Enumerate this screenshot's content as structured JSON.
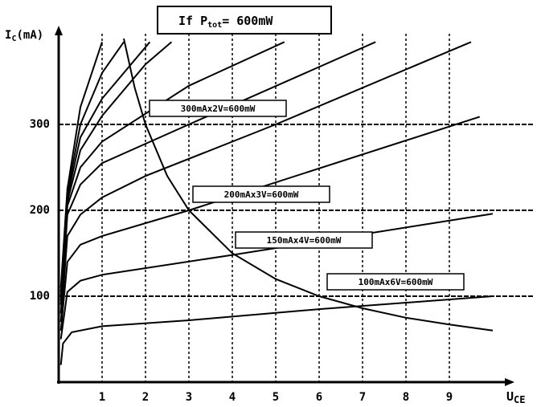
{
  "chart_data": {
    "type": "line",
    "title": {
      "main": "If P",
      "sub": "tot",
      "rest": "= 600mW"
    },
    "y_label": {
      "main": "I",
      "sub": "C",
      "rest": "(mA)"
    },
    "x_label": {
      "main": "U",
      "sub": "CE"
    },
    "xlim": [
      0,
      10
    ],
    "ylim": [
      0,
      400
    ],
    "xticks": [
      1,
      2,
      3,
      4,
      5,
      6,
      7,
      8,
      9
    ],
    "yticks": [
      100,
      200,
      300
    ],
    "grid": true,
    "series": [
      {
        "color": "#000000",
        "x": [
          0.05,
          0.1,
          0.3,
          1,
          3,
          6,
          10
        ],
        "values": [
          20,
          45,
          58,
          65,
          72,
          85,
          100
        ]
      },
      {
        "color": "#000000",
        "x": [
          0.05,
          0.2,
          0.5,
          1,
          4,
          10
        ],
        "values": [
          50,
          105,
          118,
          125,
          148,
          196
        ]
      },
      {
        "color": "#000000",
        "x": [
          0.05,
          0.2,
          0.5,
          1,
          3,
          9.7
        ],
        "values": [
          60,
          140,
          160,
          170,
          200,
          309
        ]
      },
      {
        "color": "#000000",
        "x": [
          0.05,
          0.2,
          0.5,
          1,
          2,
          5,
          9.5
        ],
        "values": [
          70,
          170,
          195,
          215,
          240,
          300,
          396
        ]
      },
      {
        "color": "#000000",
        "x": [
          0.05,
          0.2,
          0.5,
          1,
          3,
          7.3
        ],
        "values": [
          80,
          195,
          230,
          255,
          300,
          396
        ]
      },
      {
        "color": "#000000",
        "x": [
          0.05,
          0.2,
          0.5,
          1,
          3,
          5.2
        ],
        "values": [
          90,
          205,
          250,
          280,
          345,
          396
        ]
      },
      {
        "color": "#000000",
        "x": [
          0.05,
          0.2,
          0.5,
          1,
          2,
          2.6
        ],
        "values": [
          95,
          210,
          270,
          310,
          370,
          396
        ]
      },
      {
        "color": "#000000",
        "x": [
          0.05,
          0.2,
          0.5,
          1,
          2.1
        ],
        "values": [
          100,
          215,
          285,
          330,
          396
        ]
      },
      {
        "color": "#000000",
        "x": [
          0.05,
          0.2,
          0.5,
          1,
          1.5
        ],
        "values": [
          105,
          220,
          300,
          360,
          396
        ]
      },
      {
        "color": "#000000",
        "x": [
          0.05,
          0.2,
          0.5,
          1
        ],
        "values": [
          110,
          225,
          320,
          396
        ]
      },
      {
        "color": "#000000",
        "x": [
          1.5,
          1.75,
          2,
          2.5,
          3,
          4,
          5,
          6,
          7,
          8,
          9,
          10
        ],
        "values": [
          400,
          343,
          300,
          240,
          200,
          150,
          120,
          100,
          86,
          75,
          67,
          60
        ]
      }
    ],
    "annotations": [
      "300mAx2V=600mW",
      "200mAx3V=600mW",
      "150mAx4V=600mW",
      "100mAx6V=600mW"
    ]
  }
}
